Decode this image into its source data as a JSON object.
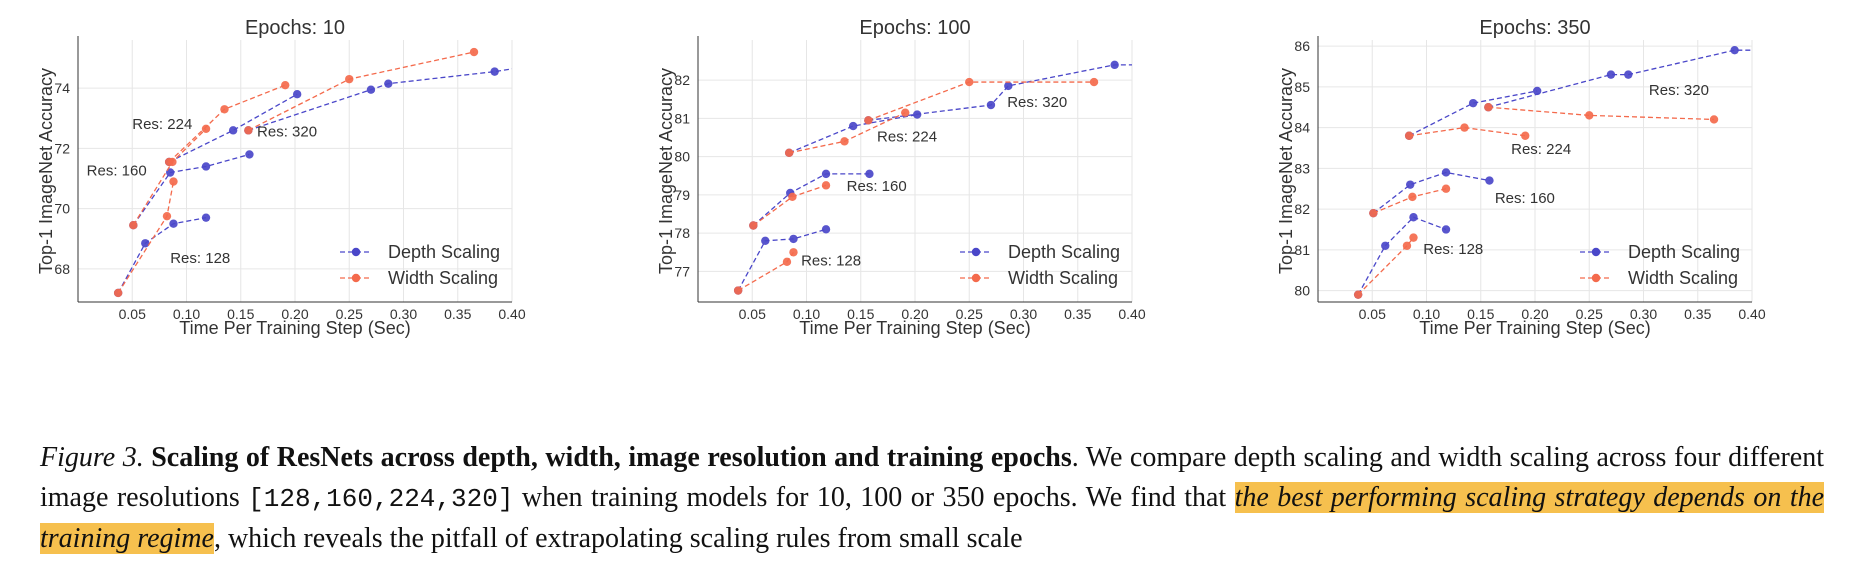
{
  "colors": {
    "depth": "#4a47c9",
    "width": "#f46a4c",
    "grid": "#e6e6e6",
    "text": "#333333"
  },
  "chart_data": [
    {
      "type": "scatter",
      "title": "Epochs: 10",
      "xlabel": "Time Per Training Step (Sec)",
      "ylabel": "Top-1 ImageNet Accuracy",
      "xlim": [
        0.0,
        0.4
      ],
      "ylim": [
        66.9,
        75.6
      ],
      "xticks": [
        "0.05",
        "0.10",
        "0.15",
        "0.20",
        "0.25",
        "0.30",
        "0.35",
        "0.40"
      ],
      "yticks": [
        "68",
        "70",
        "72",
        "74"
      ],
      "legend": [
        "Depth Scaling",
        "Width Scaling"
      ],
      "legend_position": "bottom-right",
      "series": [
        {
          "name": "Depth Scaling",
          "scaling": "depth",
          "groups": [
            {
              "res": "128",
              "points": [
                [
                  0.037,
                  67.2
                ],
                [
                  0.062,
                  68.85
                ],
                [
                  0.088,
                  69.5
                ],
                [
                  0.118,
                  69.7
                ]
              ]
            },
            {
              "res": "160",
              "points": [
                [
                  0.051,
                  69.45
                ],
                [
                  0.085,
                  71.2
                ],
                [
                  0.118,
                  71.4
                ],
                [
                  0.158,
                  71.8
                ]
              ]
            },
            {
              "res": "224",
              "points": [
                [
                  0.084,
                  71.55
                ],
                [
                  0.143,
                  72.6
                ],
                [
                  0.202,
                  73.8
                ]
              ]
            },
            {
              "res": "320",
              "points": [
                [
                  0.157,
                  72.6
                ],
                [
                  0.27,
                  73.95
                ],
                [
                  0.286,
                  74.15
                ],
                [
                  0.384,
                  74.55
                ],
                [
                  0.41,
                  74.7
                ]
              ]
            }
          ]
        },
        {
          "name": "Width Scaling",
          "scaling": "width",
          "groups": [
            {
              "res": "128",
              "points": [
                [
                  0.037,
                  67.2
                ],
                [
                  0.082,
                  69.75
                ],
                [
                  0.088,
                  70.9
                ]
              ]
            },
            {
              "res": "160",
              "points": [
                [
                  0.051,
                  69.45
                ],
                [
                  0.087,
                  71.55
                ],
                [
                  0.118,
                  72.65
                ]
              ]
            },
            {
              "res": "224",
              "points": [
                [
                  0.084,
                  71.55
                ],
                [
                  0.135,
                  73.3
                ],
                [
                  0.191,
                  74.1
                ]
              ]
            },
            {
              "res": "320",
              "points": [
                [
                  0.157,
                  72.6
                ],
                [
                  0.25,
                  74.3
                ],
                [
                  0.365,
                  75.2
                ]
              ]
            }
          ]
        }
      ],
      "annotations": [
        {
          "text": "Res: 128",
          "x": 0.085,
          "y": 68.2
        },
        {
          "text": "Res: 160",
          "x": 0.008,
          "y": 71.1
        },
        {
          "text": "Res: 224",
          "x": 0.05,
          "y": 72.65
        },
        {
          "text": "Res: 320",
          "x": 0.165,
          "y": 72.4
        }
      ]
    },
    {
      "type": "scatter",
      "title": "Epochs: 100",
      "xlabel": "Time Per Training Step (Sec)",
      "ylabel": "Top-1 ImageNet Accuracy",
      "xlim": [
        0.0,
        0.4
      ],
      "ylim": [
        76.2,
        83.05
      ],
      "xticks": [
        "0.05",
        "0.10",
        "0.15",
        "0.20",
        "0.25",
        "0.30",
        "0.35",
        "0.40"
      ],
      "yticks": [
        "77",
        "78",
        "79",
        "80",
        "81",
        "82"
      ],
      "legend": [
        "Depth Scaling",
        "Width Scaling"
      ],
      "legend_position": "bottom-right",
      "series": [
        {
          "name": "Depth Scaling",
          "scaling": "depth",
          "groups": [
            {
              "res": "128",
              "points": [
                [
                  0.037,
                  76.5
                ],
                [
                  0.062,
                  77.8
                ],
                [
                  0.088,
                  77.85
                ],
                [
                  0.118,
                  78.1
                ]
              ]
            },
            {
              "res": "160",
              "points": [
                [
                  0.051,
                  78.2
                ],
                [
                  0.085,
                  79.05
                ],
                [
                  0.118,
                  79.55
                ],
                [
                  0.158,
                  79.55
                ]
              ]
            },
            {
              "res": "224",
              "points": [
                [
                  0.084,
                  80.1
                ],
                [
                  0.143,
                  80.8
                ],
                [
                  0.202,
                  81.1
                ]
              ]
            },
            {
              "res": "320",
              "points": [
                [
                  0.157,
                  80.95
                ],
                [
                  0.27,
                  81.35
                ],
                [
                  0.286,
                  81.85
                ],
                [
                  0.384,
                  82.4
                ],
                [
                  0.41,
                  82.4
                ]
              ]
            }
          ]
        },
        {
          "name": "Width Scaling",
          "scaling": "width",
          "groups": [
            {
              "res": "128",
              "points": [
                [
                  0.037,
                  76.5
                ],
                [
                  0.082,
                  77.25
                ],
                [
                  0.088,
                  77.5
                ]
              ]
            },
            {
              "res": "160",
              "points": [
                [
                  0.051,
                  78.2
                ],
                [
                  0.087,
                  78.95
                ],
                [
                  0.118,
                  79.25
                ]
              ]
            },
            {
              "res": "224",
              "points": [
                [
                  0.084,
                  80.1
                ],
                [
                  0.135,
                  80.4
                ],
                [
                  0.191,
                  81.15
                ]
              ]
            },
            {
              "res": "320",
              "points": [
                [
                  0.157,
                  80.95
                ],
                [
                  0.25,
                  81.95
                ],
                [
                  0.365,
                  81.95
                ]
              ]
            }
          ]
        }
      ],
      "annotations": [
        {
          "text": "Res: 128",
          "x": 0.095,
          "y": 77.15
        },
        {
          "text": "Res: 160",
          "x": 0.137,
          "y": 79.1
        },
        {
          "text": "Res: 224",
          "x": 0.165,
          "y": 80.4
        },
        {
          "text": "Res: 320",
          "x": 0.285,
          "y": 81.3
        }
      ]
    },
    {
      "type": "scatter",
      "title": "Epochs: 350",
      "xlabel": "Time Per Training Step (Sec)",
      "ylabel": "Top-1 ImageNet Accuracy",
      "xlim": [
        0.0,
        0.4
      ],
      "ylim": [
        79.72,
        86.15
      ],
      "xticks": [
        "0.05",
        "0.10",
        "0.15",
        "0.20",
        "0.25",
        "0.30",
        "0.35",
        "0.40"
      ],
      "yticks": [
        "80",
        "81",
        "82",
        "83",
        "84",
        "85",
        "86"
      ],
      "legend": [
        "Depth Scaling",
        "Width Scaling"
      ],
      "legend_position": "bottom-right",
      "series": [
        {
          "name": "Depth Scaling",
          "scaling": "depth",
          "groups": [
            {
              "res": "128",
              "points": [
                [
                  0.037,
                  79.9
                ],
                [
                  0.062,
                  81.1
                ],
                [
                  0.088,
                  81.8
                ],
                [
                  0.118,
                  81.5
                ]
              ]
            },
            {
              "res": "160",
              "points": [
                [
                  0.051,
                  81.9
                ],
                [
                  0.085,
                  82.6
                ],
                [
                  0.118,
                  82.9
                ],
                [
                  0.158,
                  82.7
                ]
              ]
            },
            {
              "res": "224",
              "points": [
                [
                  0.084,
                  83.8
                ],
                [
                  0.143,
                  84.6
                ],
                [
                  0.202,
                  84.9
                ]
              ]
            },
            {
              "res": "320",
              "points": [
                [
                  0.157,
                  84.5
                ],
                [
                  0.27,
                  85.3
                ],
                [
                  0.286,
                  85.3
                ],
                [
                  0.384,
                  85.9
                ],
                [
                  0.41,
                  85.9
                ]
              ]
            }
          ]
        },
        {
          "name": "Width Scaling",
          "scaling": "width",
          "groups": [
            {
              "res": "128",
              "points": [
                [
                  0.037,
                  79.9
                ],
                [
                  0.082,
                  81.1
                ],
                [
                  0.088,
                  81.3
                ]
              ]
            },
            {
              "res": "160",
              "points": [
                [
                  0.051,
                  81.9
                ],
                [
                  0.087,
                  82.3
                ],
                [
                  0.118,
                  82.5
                ]
              ]
            },
            {
              "res": "224",
              "points": [
                [
                  0.084,
                  83.8
                ],
                [
                  0.135,
                  84.0
                ],
                [
                  0.191,
                  83.8
                ]
              ]
            },
            {
              "res": "320",
              "points": [
                [
                  0.157,
                  84.5
                ],
                [
                  0.25,
                  84.3
                ],
                [
                  0.365,
                  84.2
                ]
              ]
            }
          ]
        }
      ],
      "annotations": [
        {
          "text": "Res: 128",
          "x": 0.097,
          "y": 80.9
        },
        {
          "text": "Res: 160",
          "x": 0.163,
          "y": 82.15
        },
        {
          "text": "Res: 224",
          "x": 0.178,
          "y": 83.35
        },
        {
          "text": "Res: 320",
          "x": 0.305,
          "y": 84.8
        }
      ]
    }
  ],
  "caption": {
    "figure_label": "Figure 3.",
    "title": "Scaling of ResNets across depth, width, image resolution and training epochs",
    "text_1": ". We compare depth scaling and width scaling across four different image resolutions",
    "resolutions": "[128,160,224,320]",
    "text_2": "when training models for 10, 100 or 350 epochs. We find that",
    "highlight": "the best performing scaling strategy depends on the training regime",
    "text_3": ", which reveals the pitfall of extrapolating scaling rules from small scale"
  }
}
